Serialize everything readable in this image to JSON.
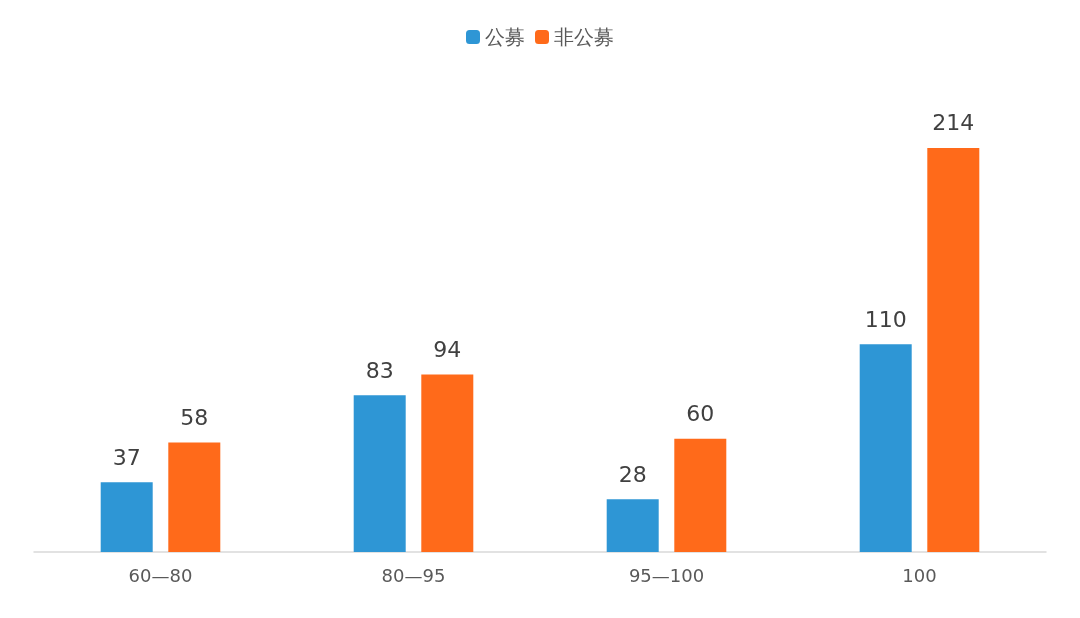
{
  "chart_data": {
    "type": "bar",
    "categories": [
      "60—80",
      "80—95",
      "95—100",
      "100"
    ],
    "series": [
      {
        "name": "公募",
        "color": "#2e96d5",
        "values": [
          37,
          83,
          28,
          110
        ]
      },
      {
        "name": "非公募",
        "color": "#ff6a1a",
        "values": [
          58,
          94,
          60,
          214
        ]
      }
    ],
    "data_labels": true,
    "legend": "top"
  }
}
